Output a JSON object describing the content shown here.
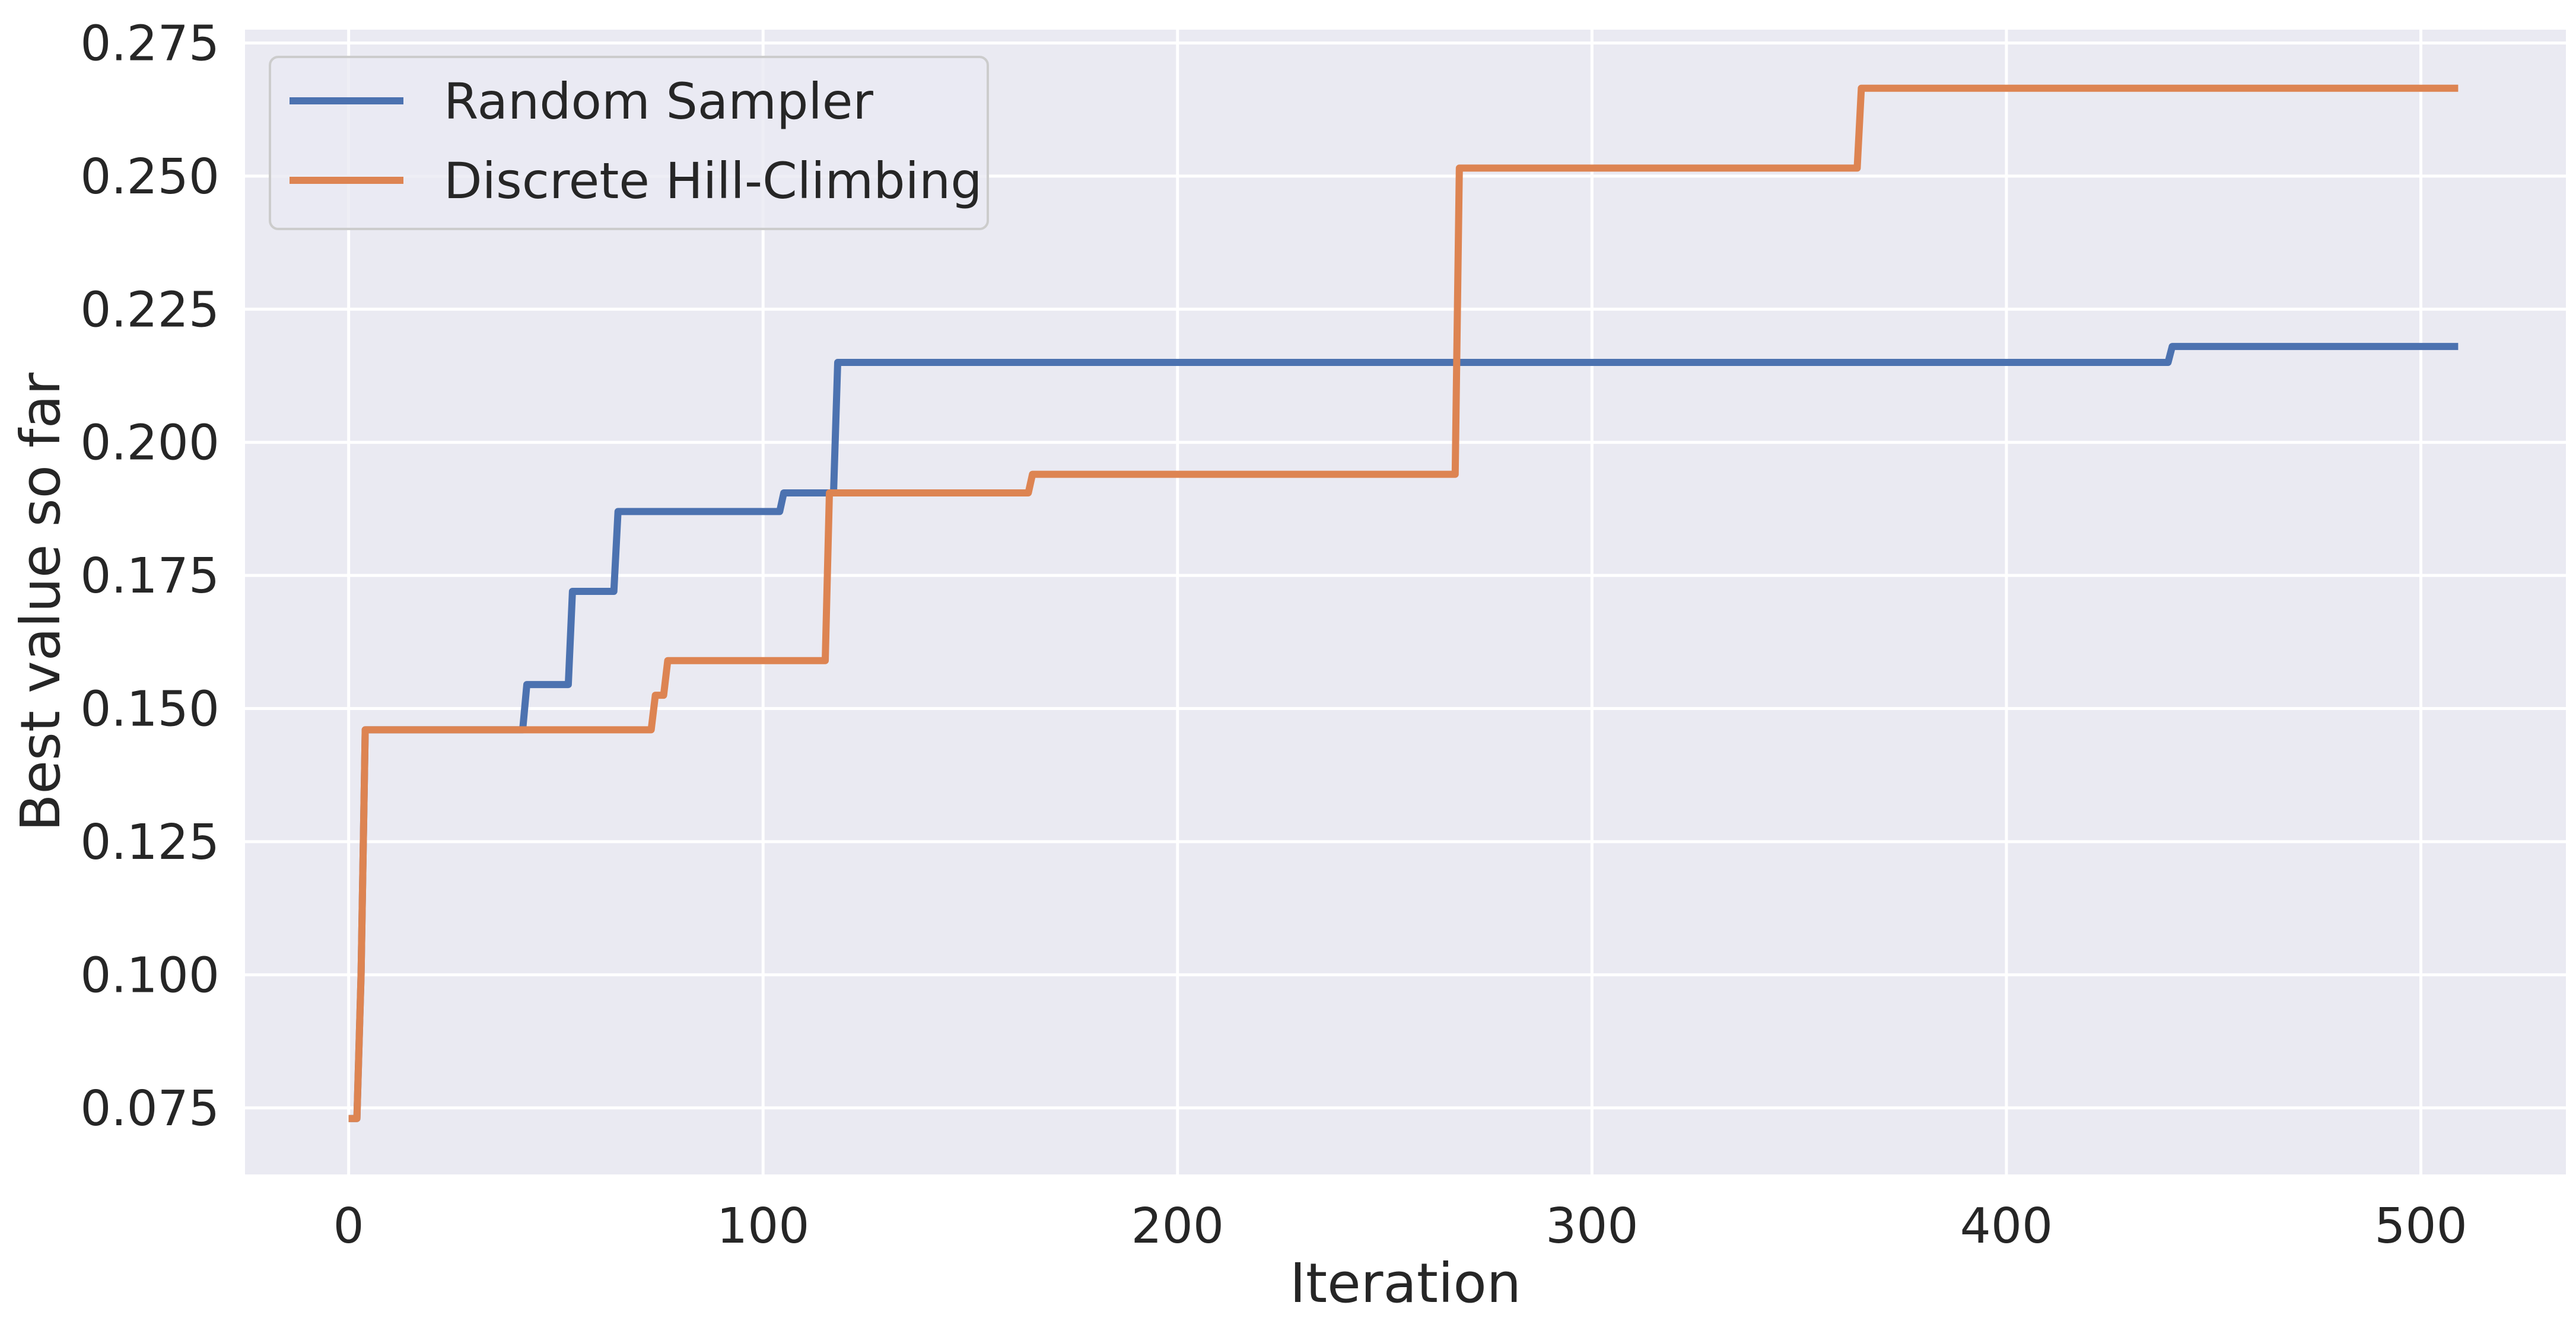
{
  "chart_data": {
    "type": "line",
    "title": "",
    "xlabel": "Iteration",
    "ylabel": "Best value so far",
    "xlim": [
      -25,
      535
    ],
    "ylim": [
      0.0625,
      0.2775
    ],
    "xticks": [
      0,
      100,
      200,
      300,
      400,
      500
    ],
    "xtick_labels": [
      "0",
      "100",
      "200",
      "300",
      "400",
      "500"
    ],
    "yticks": [
      0.075,
      0.1,
      0.125,
      0.15,
      0.175,
      0.2,
      0.225,
      0.25,
      0.275
    ],
    "ytick_labels": [
      "0.075",
      "0.100",
      "0.125",
      "0.150",
      "0.175",
      "0.200",
      "0.225",
      "0.250",
      "0.275"
    ],
    "grid": true,
    "legend": "top-left",
    "series": [
      {
        "name": "Random Sampler",
        "color": "#4c72b0",
        "points": [
          [
            0,
            0.073
          ],
          [
            2,
            0.073
          ],
          [
            3,
            0.1
          ],
          [
            4,
            0.146
          ],
          [
            42,
            0.146
          ],
          [
            43,
            0.1545
          ],
          [
            53,
            0.1545
          ],
          [
            54,
            0.172
          ],
          [
            64,
            0.172
          ],
          [
            65,
            0.187
          ],
          [
            104,
            0.187
          ],
          [
            105,
            0.1905
          ],
          [
            117,
            0.1905
          ],
          [
            118,
            0.215
          ],
          [
            439,
            0.215
          ],
          [
            440,
            0.218
          ],
          [
            509,
            0.218
          ]
        ]
      },
      {
        "name": "Discrete Hill-Climbing",
        "color": "#dd8452",
        "points": [
          [
            0,
            0.073
          ],
          [
            2,
            0.073
          ],
          [
            3,
            0.1
          ],
          [
            4,
            0.146
          ],
          [
            73,
            0.146
          ],
          [
            74,
            0.1525
          ],
          [
            76,
            0.1525
          ],
          [
            77,
            0.159
          ],
          [
            115,
            0.159
          ],
          [
            116,
            0.1905
          ],
          [
            164,
            0.1905
          ],
          [
            165,
            0.194
          ],
          [
            267,
            0.194
          ],
          [
            268,
            0.2515
          ],
          [
            364,
            0.2515
          ],
          [
            365,
            0.2665
          ],
          [
            509,
            0.2665
          ]
        ]
      }
    ]
  }
}
